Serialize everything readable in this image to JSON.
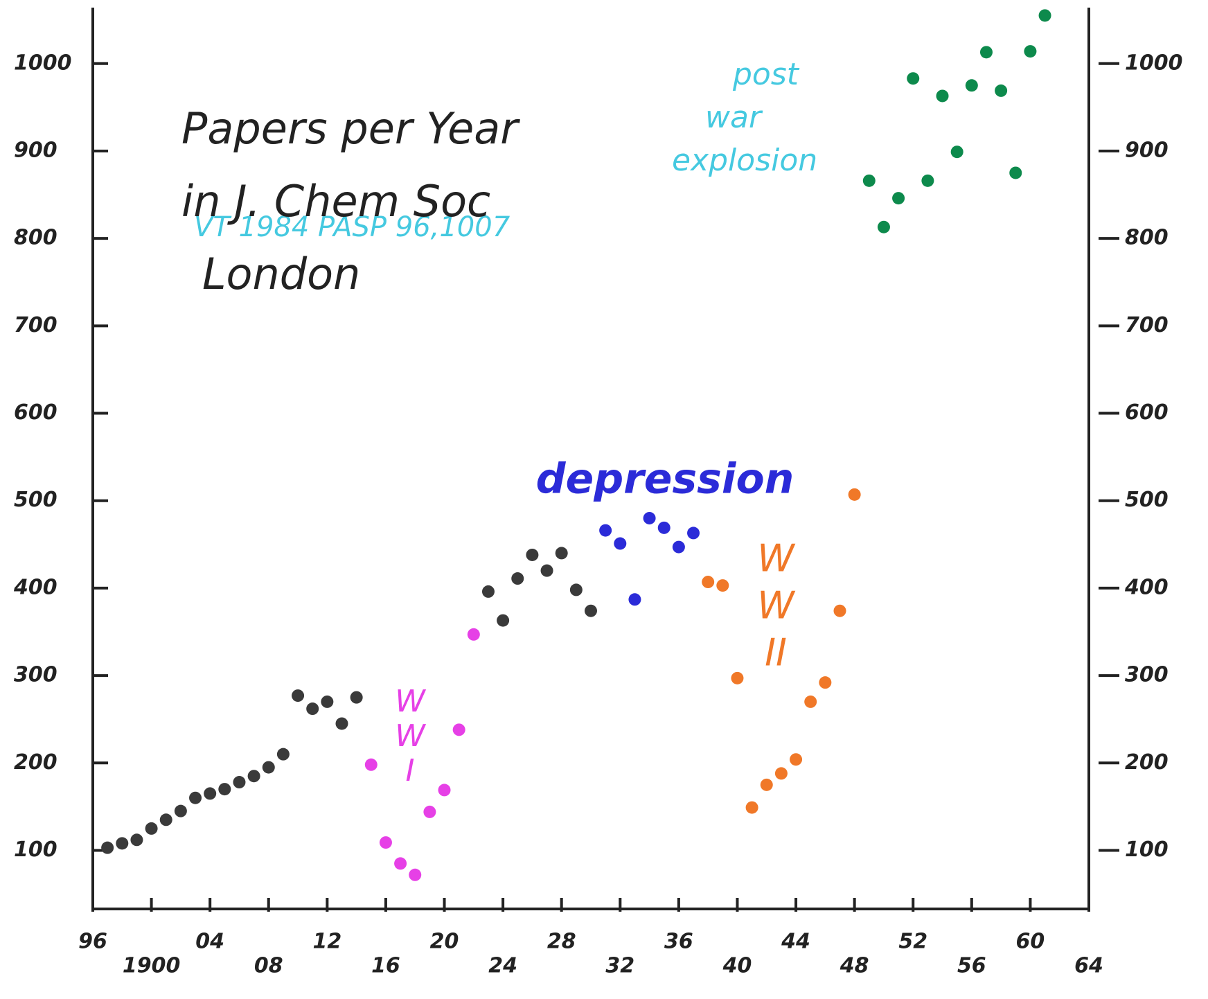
{
  "chart_data": {
    "type": "scatter",
    "title_lines": [
      "Papers per Year",
      "in J. Chem Soc",
      "London"
    ],
    "subtitle": "VT 1984 PASP 96,1007",
    "annotations": [
      {
        "lines": [
          "post",
          "war",
          "explosion"
        ],
        "color": "#45c9e0"
      },
      {
        "lines": [
          "depression"
        ],
        "color": "#2b2bd8"
      },
      {
        "lines": [
          "W",
          "W",
          "I"
        ],
        "color": "#e640e6"
      },
      {
        "lines": [
          "W",
          "W",
          "II"
        ],
        "color": "#f07828"
      }
    ],
    "xlim": [
      1896,
      1964
    ],
    "xticks": [
      {
        "value": 1896,
        "label": "96"
      },
      {
        "value": 1900,
        "label": "1900"
      },
      {
        "value": 1904,
        "label": "04"
      },
      {
        "value": 1908,
        "label": "08"
      },
      {
        "value": 1912,
        "label": "12"
      },
      {
        "value": 1916,
        "label": "16"
      },
      {
        "value": 1920,
        "label": "20"
      },
      {
        "value": 1924,
        "label": "24"
      },
      {
        "value": 1928,
        "label": "28"
      },
      {
        "value": 1932,
        "label": "32"
      },
      {
        "value": 1936,
        "label": "36"
      },
      {
        "value": 1940,
        "label": "40"
      },
      {
        "value": 1944,
        "label": "44"
      },
      {
        "value": 1948,
        "label": "48"
      },
      {
        "value": 1952,
        "label": "52"
      },
      {
        "value": 1956,
        "label": "56"
      },
      {
        "value": 1960,
        "label": "60"
      },
      {
        "value": 1964,
        "label": "64"
      }
    ],
    "ylim": [
      33,
      1064
    ],
    "yticks": [
      100,
      200,
      300,
      400,
      500,
      600,
      700,
      800,
      900,
      1000
    ],
    "series": [
      {
        "color": "#3a3a3a",
        "x": [
          1897,
          1898,
          1899,
          1900,
          1901,
          1902,
          1903,
          1904,
          1905,
          1906,
          1907,
          1908,
          1909,
          1910,
          1911,
          1912,
          1913,
          1914
        ],
        "values": [
          103,
          108,
          112,
          125,
          135,
          145,
          160,
          165,
          170,
          178,
          185,
          195,
          210,
          277,
          262,
          270,
          245,
          275
        ]
      },
      {
        "color": "#e640e6",
        "x": [
          1915,
          1916,
          1917,
          1918,
          1919,
          1920,
          1921,
          1922
        ],
        "values": [
          198,
          109,
          85,
          72,
          144,
          169,
          238,
          347
        ]
      },
      {
        "color": "#3a3a3a",
        "x": [
          1923,
          1924,
          1925,
          1926,
          1927,
          1928,
          1929,
          1930
        ],
        "values": [
          396,
          363,
          411,
          438,
          420,
          440,
          398,
          374
        ]
      },
      {
        "color": "#2b2bd8",
        "x": [
          1931,
          1932,
          1933,
          1934,
          1935,
          1936,
          1937
        ],
        "values": [
          466,
          451,
          387,
          480,
          469,
          447,
          463
        ]
      },
      {
        "color": "#f07828",
        "x": [
          1938,
          1939,
          1940,
          1941,
          1942,
          1943,
          1944,
          1945,
          1946,
          1947,
          1948
        ],
        "values": [
          407,
          403,
          297,
          149,
          175,
          188,
          204,
          270,
          292,
          374,
          507
        ]
      },
      {
        "color": "#0d8a4c",
        "x": [
          1949,
          1950,
          1951,
          1952,
          1953,
          1954,
          1955,
          1956,
          1957,
          1958,
          1959,
          1960,
          1961
        ],
        "values": [
          866,
          813,
          846,
          983,
          866,
          963,
          899,
          975,
          1013,
          969,
          875,
          1014,
          1055
        ]
      }
    ]
  }
}
